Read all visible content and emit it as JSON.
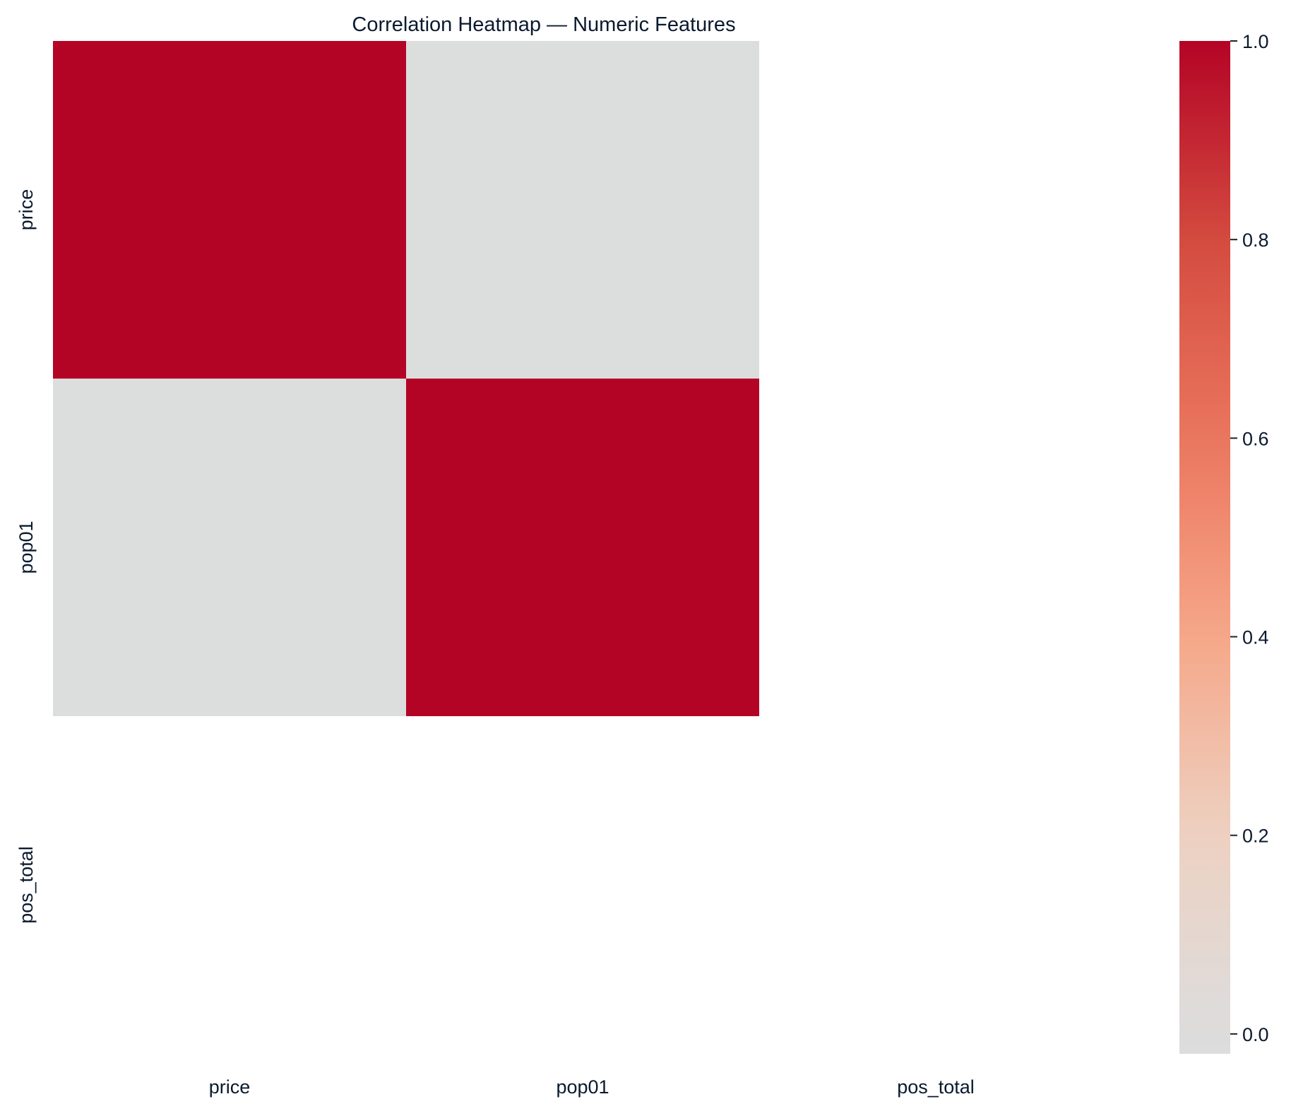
{
  "chart_data": {
    "type": "heatmap",
    "title": "Correlation Heatmap — Numeric Features",
    "x_labels": [
      "price",
      "pop01",
      "pos_total"
    ],
    "y_labels": [
      "price",
      "pop01",
      "pos_total"
    ],
    "matrix": [
      [
        1.0,
        0.0,
        null
      ],
      [
        0.0,
        1.0,
        null
      ],
      [
        null,
        null,
        null
      ]
    ],
    "colorbar": {
      "min": -0.02,
      "max": 1.0,
      "ticks": [
        {
          "value": 0.0,
          "label": "0.0"
        },
        {
          "value": 0.2,
          "label": "0.2"
        },
        {
          "value": 0.4,
          "label": "0.4"
        },
        {
          "value": 0.6,
          "label": "0.6"
        },
        {
          "value": 0.8,
          "label": "0.8"
        },
        {
          "value": 1.0,
          "label": "1.0"
        }
      ],
      "colormap": "coolwarm (upper half)",
      "color_low": "#dcdddd",
      "color_high": "#b40426"
    },
    "grid": false
  }
}
